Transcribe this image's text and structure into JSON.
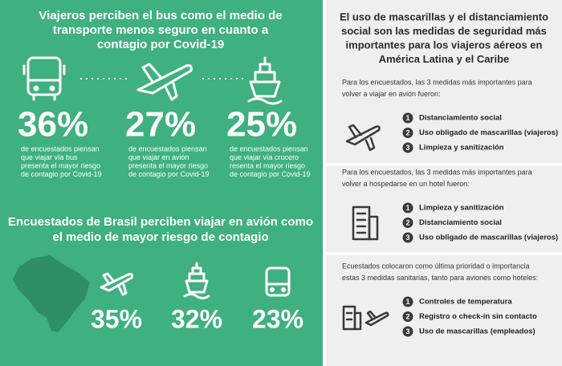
{
  "left": {
    "title": [
      "Viajeros perciben el bus como el medio de",
      "transporte menos seguro en cuanto a",
      "contagio por Covid-19"
    ],
    "stats": [
      {
        "value": "36%",
        "lines": [
          "de encuestados piensan",
          "que viajar vía bus",
          "presenta el mayor riesgo",
          "de contagio por Covid-19"
        ]
      },
      {
        "value": "27%",
        "lines": [
          "de encuestados piensan",
          "que viajar en avión",
          "presenta el mayor riesgo",
          "de contagio por Covid-19"
        ]
      },
      {
        "value": "25%",
        "lines": [
          "de encuestados piensan",
          "que viajar vía crucero",
          "resenta el mayor riesgo",
          "de contagio por Covid-19"
        ]
      }
    ],
    "brazil_title": [
      "Encuestados de Brasil perciben viajar en avión como",
      "el medio de mayor riesgo de contagio"
    ],
    "brazil_stats": [
      "35%",
      "32%",
      "23%"
    ]
  },
  "right": {
    "title": [
      "El uso de mascarillas y el distanciamiento",
      "social son las medidas de seguridad más",
      "importantes para los viajeros aéreos en",
      "América Latina y el Caribe"
    ],
    "sections": [
      {
        "intro": [
          "Para los encuestados, las 3 medidas más importantes para",
          "volver a viajar en avión fueron:"
        ],
        "items": [
          {
            "rank": "1",
            "label": "Distanciamiento social"
          },
          {
            "rank": "2",
            "label": "Uso obligado de mascarillas (viajeros)"
          },
          {
            "rank": "3",
            "label": "Limpieza y sanitización"
          }
        ]
      },
      {
        "intro": [
          "Para los encuestados, las 3 medidas más importantes para",
          "volver a hospedarse en un hotel fueron:"
        ],
        "items": [
          {
            "rank": "1",
            "label": "Limpieza y sanitización"
          },
          {
            "rank": "2",
            "label": "Distanciamiento social"
          },
          {
            "rank": "3",
            "label": "Uso obligado de mascarillas (viajeros)"
          }
        ]
      },
      {
        "intro": [
          "Ecuestados colocaron como última prioridad o importancia",
          "estas 3 medidas sanitarias, tanto para aviones como hoteles:"
        ],
        "items": [
          {
            "rank": "1",
            "label": "Controles de temperatura"
          },
          {
            "rank": "2",
            "label": "Registro o check-in sin contacto"
          },
          {
            "rank": "3",
            "label": "Uso de mascarillas (empleados)"
          }
        ]
      }
    ]
  }
}
